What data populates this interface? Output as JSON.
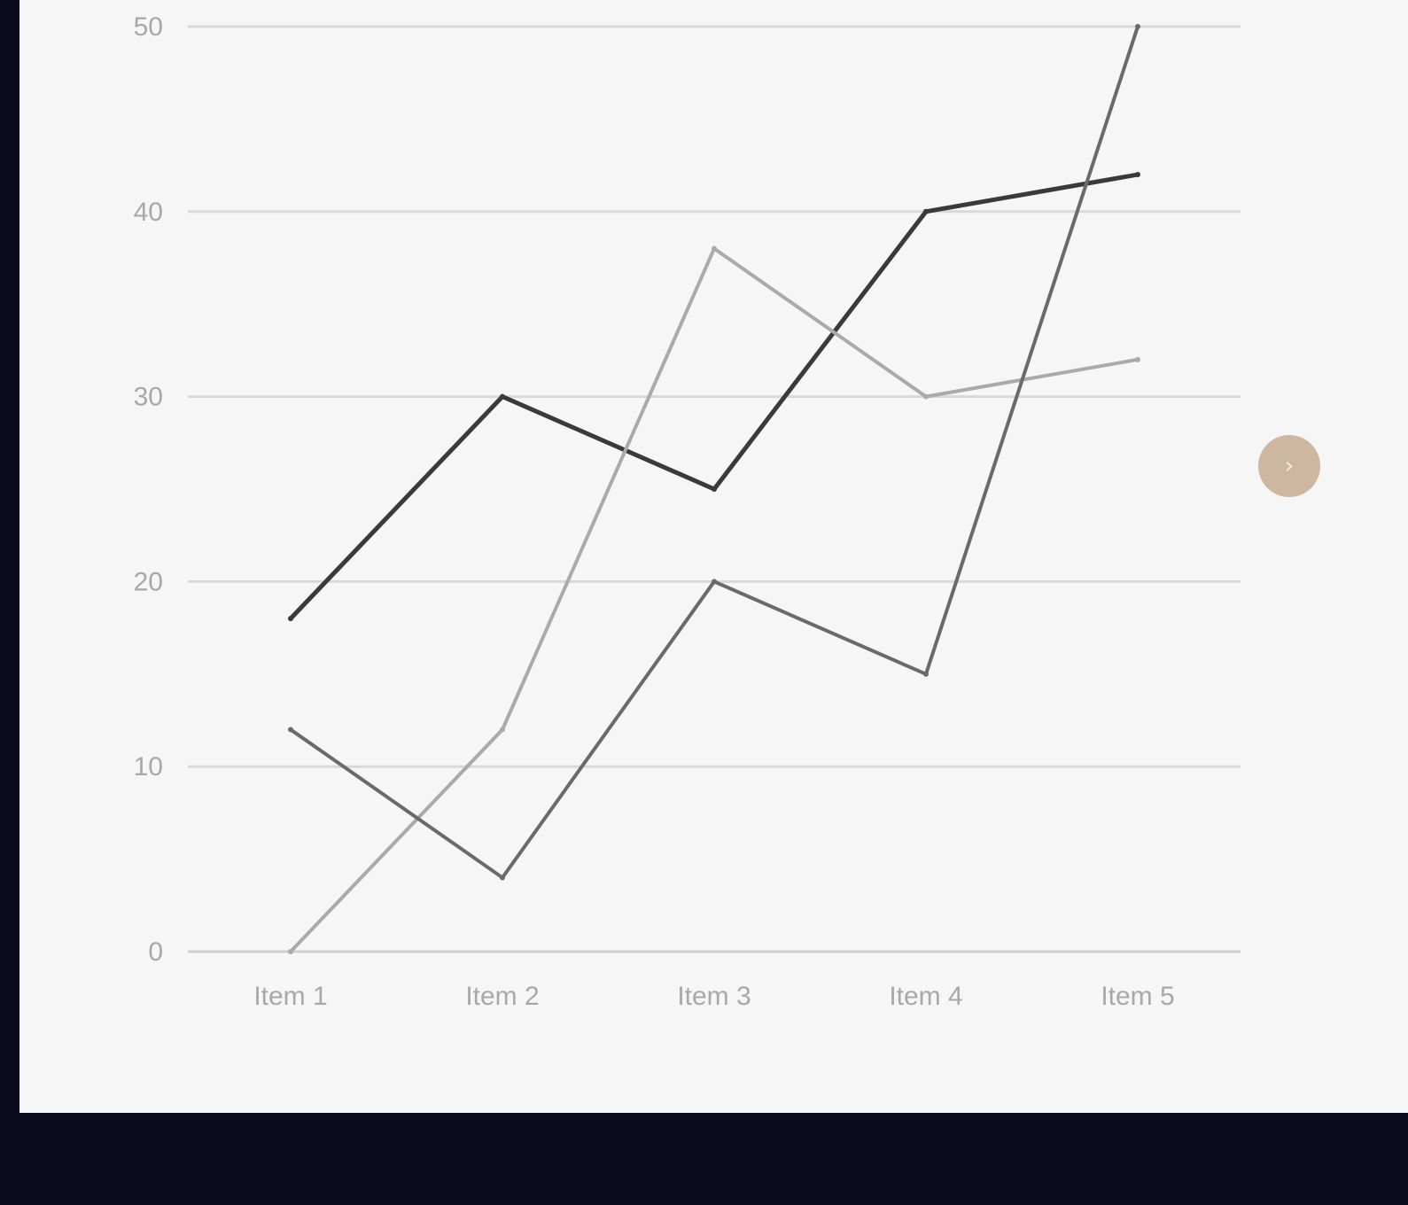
{
  "chart_data": {
    "type": "line",
    "categories": [
      "Item 1",
      "Item 2",
      "Item 3",
      "Item 4",
      "Item 5"
    ],
    "series": [
      {
        "color": "#3a3a3a",
        "values": [
          18,
          30,
          25,
          40,
          42
        ]
      },
      {
        "color": "#aaaaaa",
        "values": [
          0,
          12,
          38,
          30,
          32
        ]
      },
      {
        "color": "#6a6a6a",
        "values": [
          12,
          4,
          20,
          15,
          50
        ]
      }
    ],
    "yticks": [
      "0",
      "10",
      "20",
      "30",
      "40",
      "50"
    ],
    "ylim": [
      0,
      50
    ],
    "grid": true,
    "legend": "none"
  },
  "controls": {
    "next_icon_glyph": "›"
  },
  "colors": {
    "background": "#0b0a1e",
    "card": "#f6f6f6",
    "gridline": "#d9d9d9",
    "tick_label": "#a8a8a8",
    "next_button": "#cdb7a1"
  }
}
